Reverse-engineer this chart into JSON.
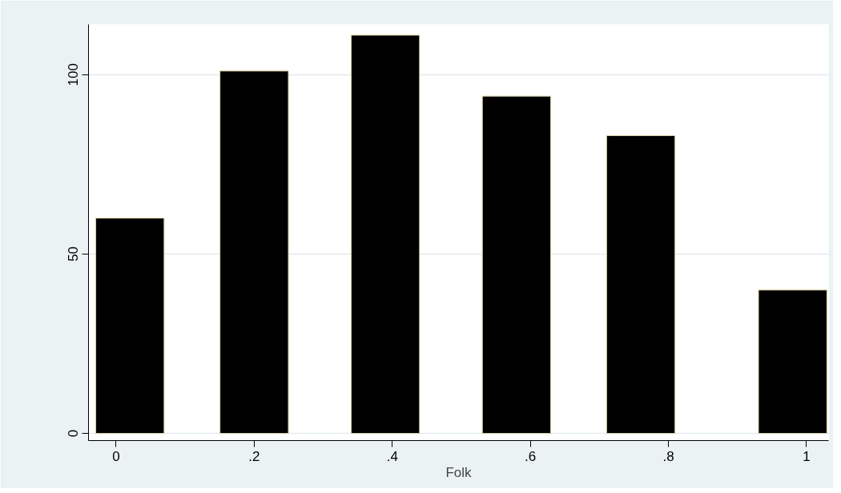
{
  "chart_data": {
    "type": "bar",
    "xlabel": "Folk",
    "x": [
      0.02,
      0.2,
      0.39,
      0.58,
      0.76,
      0.98
    ],
    "series": [
      {
        "color": "#000000",
        "values": [
          60,
          101,
          111,
          94,
          83,
          40
        ]
      }
    ],
    "xlim": [
      -0.04,
      1.032
    ],
    "xticks": [
      0,
      {
        "value": 0.2,
        "label": ".2"
      },
      {
        "value": 0.4,
        "label": ".4"
      },
      {
        "value": 0.6,
        "label": ".6"
      },
      {
        "value": 0.8,
        "label": ".8"
      },
      1
    ],
    "ylim": [
      -2,
      114
    ],
    "yticks": [
      0,
      50,
      100
    ],
    "grid": "y"
  }
}
